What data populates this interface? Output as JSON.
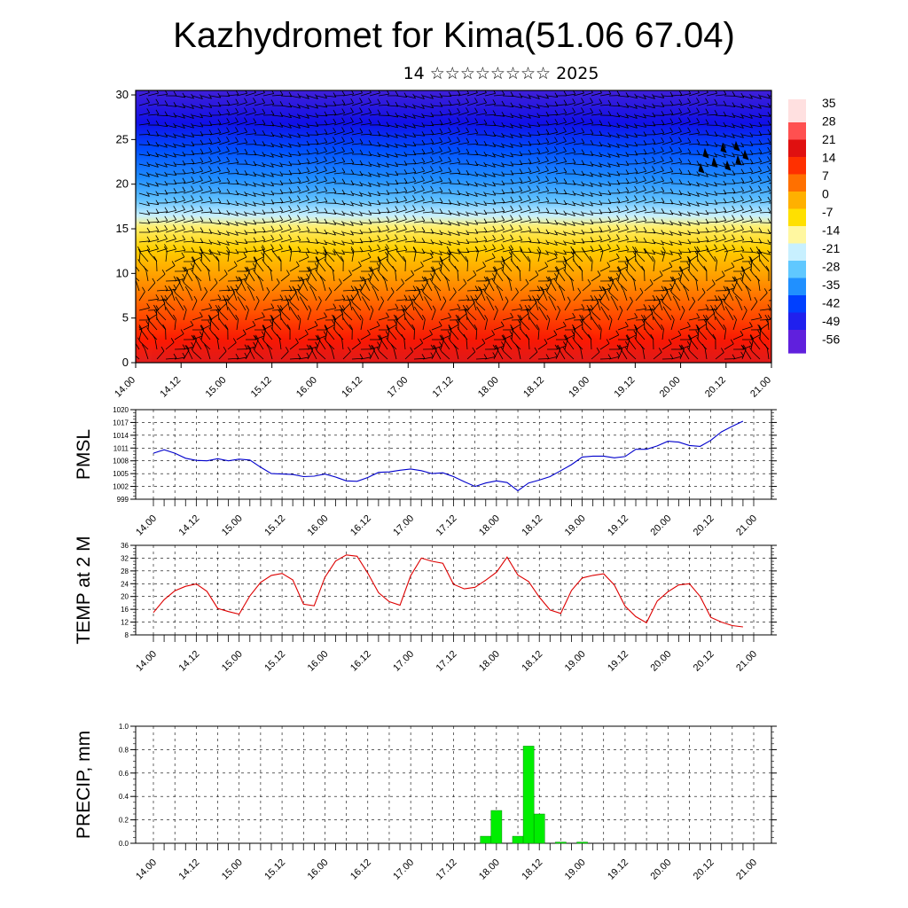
{
  "header": {
    "title": "Kazhydromet for Kima(51.06 67.04)",
    "subtitle": "14 ☆☆☆☆☆☆☆☆ 2025"
  },
  "colors": {
    "pmsl_line": "#0000cc",
    "temp_line": "#dd0000",
    "precip_bar": "#00ee00",
    "axis": "#000000"
  },
  "chart_data": [
    {
      "type": "heatmap",
      "name": "upper-air cross section",
      "x_tick_labels": [
        "14.00",
        "14.12",
        "15.00",
        "15.12",
        "16.00",
        "16.12",
        "17.00",
        "17.12",
        "18.00",
        "18.12",
        "19.00",
        "19.12",
        "20.00",
        "20.12",
        "21.00"
      ],
      "y_tick_labels": [
        "0",
        "5",
        "10",
        "15",
        "20",
        "25",
        "30"
      ],
      "ylim": [
        0,
        30.5
      ],
      "colorbar_labels": [
        "35",
        "28",
        "21",
        "14",
        "7",
        "0",
        "-7",
        "-14",
        "-21",
        "-28",
        "-35",
        "-42",
        "-49",
        "-56"
      ],
      "colorbar_range": [
        -60,
        38
      ],
      "colormap": [
        "#ffe0e0",
        "#ff5050",
        "#e01010",
        "#ff3000",
        "#ff7000",
        "#ffb000",
        "#ffe000",
        "#fff7a0",
        "#c8f0ff",
        "#60c8ff",
        "#2090ff",
        "#0040ff",
        "#2020ee",
        "#6020dd"
      ],
      "overlay": "wind barbs"
    },
    {
      "type": "line",
      "ylabel": "PMSL",
      "y_tick_labels": [
        "999",
        "1002",
        "1005",
        "1008",
        "1011",
        "1014",
        "1017",
        "1020"
      ],
      "ylim": [
        999,
        1020
      ],
      "x_tick_labels": [
        "14.00",
        "14.12",
        "15.00",
        "15.12",
        "16.00",
        "16.12",
        "17.00",
        "17.12",
        "18.00",
        "18.12",
        "19.00",
        "19.12",
        "20.00",
        "20.12",
        "21.00"
      ],
      "x": [
        0,
        0.25,
        0.5,
        0.75,
        1,
        1.25,
        1.5,
        1.75,
        2,
        2.25,
        2.5,
        2.75,
        3,
        3.25,
        3.5,
        3.75,
        4,
        4.25,
        4.5,
        4.75,
        5,
        5.25,
        5.5,
        5.75,
        6,
        6.25,
        6.5,
        6.75,
        7,
        7.25,
        7.5,
        7.75,
        8,
        8.25,
        8.5,
        8.75,
        9,
        9.25,
        9.5,
        9.75,
        10,
        10.25,
        10.5,
        10.75,
        11,
        11.25,
        11.5,
        11.75,
        12,
        12.25,
        12.5,
        12.75,
        13,
        13.25,
        13.5,
        13.75,
        14
      ],
      "values": [
        1009.8,
        1010.6,
        1009.8,
        1008.6,
        1008.1,
        1008.0,
        1008.5,
        1008.0,
        1008.4,
        1008.2,
        1006.5,
        1005.0,
        1004.9,
        1004.8,
        1004.3,
        1004.4,
        1004.9,
        1004.2,
        1003.3,
        1003.2,
        1004.1,
        1005.3,
        1005.4,
        1005.8,
        1006.1,
        1005.7,
        1005.0,
        1005.2,
        1004.3,
        1003.1,
        1002.0,
        1002.8,
        1003.3,
        1002.9,
        1001.0,
        1002.8,
        1003.5,
        1004.3,
        1005.7,
        1007.1,
        1008.9,
        1009.1,
        1009.1,
        1008.7,
        1009.0,
        1010.7,
        1010.7,
        1011.5,
        1012.6,
        1012.4,
        1011.6,
        1011.4,
        1012.8,
        1014.8,
        1016.1,
        1017.3,
        null
      ]
    },
    {
      "type": "line",
      "ylabel": "TEMP at 2 M",
      "y_tick_labels": [
        "8",
        "12",
        "16",
        "20",
        "24",
        "28",
        "32",
        "36"
      ],
      "ylim": [
        8,
        36
      ],
      "x_tick_labels": [
        "14.00",
        "14.12",
        "15.00",
        "15.12",
        "16.00",
        "16.12",
        "17.00",
        "17.12",
        "18.00",
        "18.12",
        "19.00",
        "19.12",
        "20.00",
        "20.12",
        "21.00"
      ],
      "x": [
        0,
        0.25,
        0.5,
        0.75,
        1,
        1.25,
        1.5,
        1.75,
        2,
        2.25,
        2.5,
        2.75,
        3,
        3.25,
        3.5,
        3.75,
        4,
        4.25,
        4.5,
        4.75,
        5,
        5.25,
        5.5,
        5.75,
        6,
        6.25,
        6.5,
        6.75,
        7,
        7.25,
        7.5,
        7.75,
        8,
        8.25,
        8.5,
        8.75,
        9,
        9.25,
        9.5,
        9.75,
        10,
        10.25,
        10.5,
        10.75,
        11,
        11.25,
        11.5,
        11.75,
        12,
        12.25,
        12.5,
        12.75,
        13,
        13.25,
        13.5,
        13.75
      ],
      "values": [
        15.0,
        19.0,
        21.8,
        23.2,
        23.9,
        21.6,
        16.3,
        15.3,
        14.5,
        20.2,
        24.4,
        26.6,
        27.2,
        25.2,
        17.6,
        17.1,
        26.0,
        31.1,
        33.0,
        32.6,
        27.3,
        21.2,
        18.4,
        17.3,
        26.5,
        32.0,
        31.0,
        30.4,
        23.8,
        22.4,
        22.9,
        25.1,
        27.6,
        32.3,
        26.7,
        24.7,
        19.8,
        15.8,
        14.7,
        21.9,
        25.8,
        26.6,
        27.1,
        23.6,
        17.0,
        13.7,
        11.8,
        18.6,
        21.5,
        23.6,
        24.0,
        20.0,
        13.5,
        12.0,
        10.9,
        10.5
      ]
    },
    {
      "type": "bar",
      "ylabel": "PRECIP, mm",
      "y_tick_labels": [
        "0.0",
        "0.2",
        "0.4",
        "0.6",
        "0.8",
        "1.0"
      ],
      "ylim": [
        0,
        1.0
      ],
      "x_tick_labels": [
        "14.00",
        "14.12",
        "15.00",
        "15.12",
        "16.00",
        "16.12",
        "17.00",
        "17.12",
        "18.00",
        "18.12",
        "19.00",
        "19.12",
        "20.00",
        "20.12",
        "21.00"
      ],
      "x": [
        7.75,
        8.0,
        8.5,
        8.75,
        9.0,
        9.5,
        10.0
      ],
      "values": [
        0.06,
        0.28,
        0.06,
        0.83,
        0.25,
        0.01,
        0.01
      ]
    }
  ]
}
